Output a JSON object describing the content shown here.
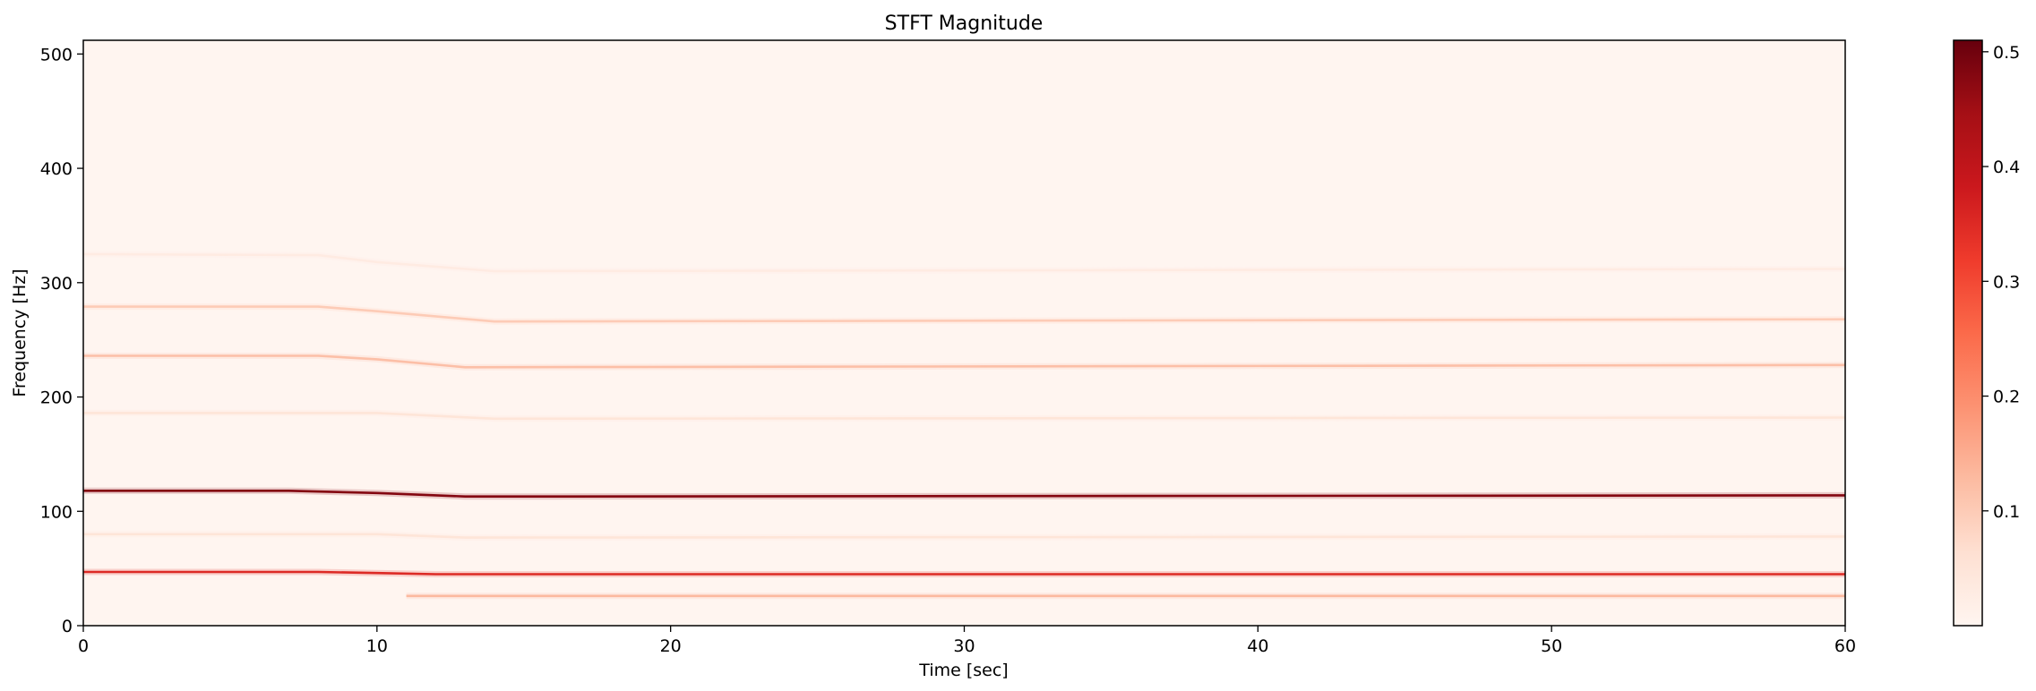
{
  "chart_data": {
    "type": "heatmap",
    "title": "STFT Magnitude",
    "xlabel": "Time [sec]",
    "ylabel": "Frequency [Hz]",
    "xlim": [
      0,
      60
    ],
    "ylim": [
      0,
      512
    ],
    "xticks": [
      0,
      10,
      20,
      30,
      40,
      50,
      60
    ],
    "yticks": [
      0,
      100,
      200,
      300,
      400,
      500
    ],
    "colormap": "Reds",
    "colorbar": {
      "range": [
        0,
        0.51
      ],
      "ticks": [
        0.1,
        0.2,
        0.3,
        0.4,
        0.5
      ]
    },
    "background_value": 0.01,
    "lines": [
      {
        "points": [
          [
            0,
            47
          ],
          [
            1,
            47
          ],
          [
            8,
            47
          ],
          [
            10,
            46
          ],
          [
            12,
            45
          ],
          [
            60,
            45
          ]
        ],
        "value": 0.35
      },
      {
        "points": [
          [
            0,
            118
          ],
          [
            1,
            118
          ],
          [
            7,
            118
          ],
          [
            10,
            116
          ],
          [
            13,
            113
          ],
          [
            16,
            113
          ],
          [
            60,
            114
          ]
        ],
        "value": 0.48
      },
      {
        "points": [
          [
            11,
            26
          ],
          [
            60,
            26
          ]
        ],
        "value": 0.13
      },
      {
        "points": [
          [
            0,
            80
          ],
          [
            10,
            80
          ],
          [
            13,
            77
          ],
          [
            60,
            78
          ]
        ],
        "value": 0.05
      },
      {
        "points": [
          [
            0,
            186
          ],
          [
            10,
            186
          ],
          [
            14,
            181
          ],
          [
            60,
            182
          ]
        ],
        "value": 0.05
      },
      {
        "points": [
          [
            0,
            236
          ],
          [
            8,
            236
          ],
          [
            10,
            233
          ],
          [
            13,
            226
          ],
          [
            60,
            228
          ]
        ],
        "value": 0.12
      },
      {
        "points": [
          [
            0,
            279
          ],
          [
            8,
            279
          ],
          [
            10,
            275
          ],
          [
            14,
            266
          ],
          [
            60,
            268
          ]
        ],
        "value": 0.1
      },
      {
        "points": [
          [
            0,
            325
          ],
          [
            8,
            324
          ],
          [
            10,
            318
          ],
          [
            14,
            310
          ],
          [
            60,
            312
          ]
        ],
        "value": 0.03
      }
    ]
  },
  "labels": {
    "title": "STFT Magnitude",
    "xlabel": "Time [sec]",
    "ylabel": "Frequency [Hz]",
    "xtick_labels": [
      "0",
      "10",
      "20",
      "30",
      "40",
      "50",
      "60"
    ],
    "ytick_labels": [
      "0",
      "100",
      "200",
      "300",
      "400",
      "500"
    ],
    "cbar_tick_labels": [
      "0.1",
      "0.2",
      "0.3",
      "0.4",
      "0.5"
    ]
  }
}
